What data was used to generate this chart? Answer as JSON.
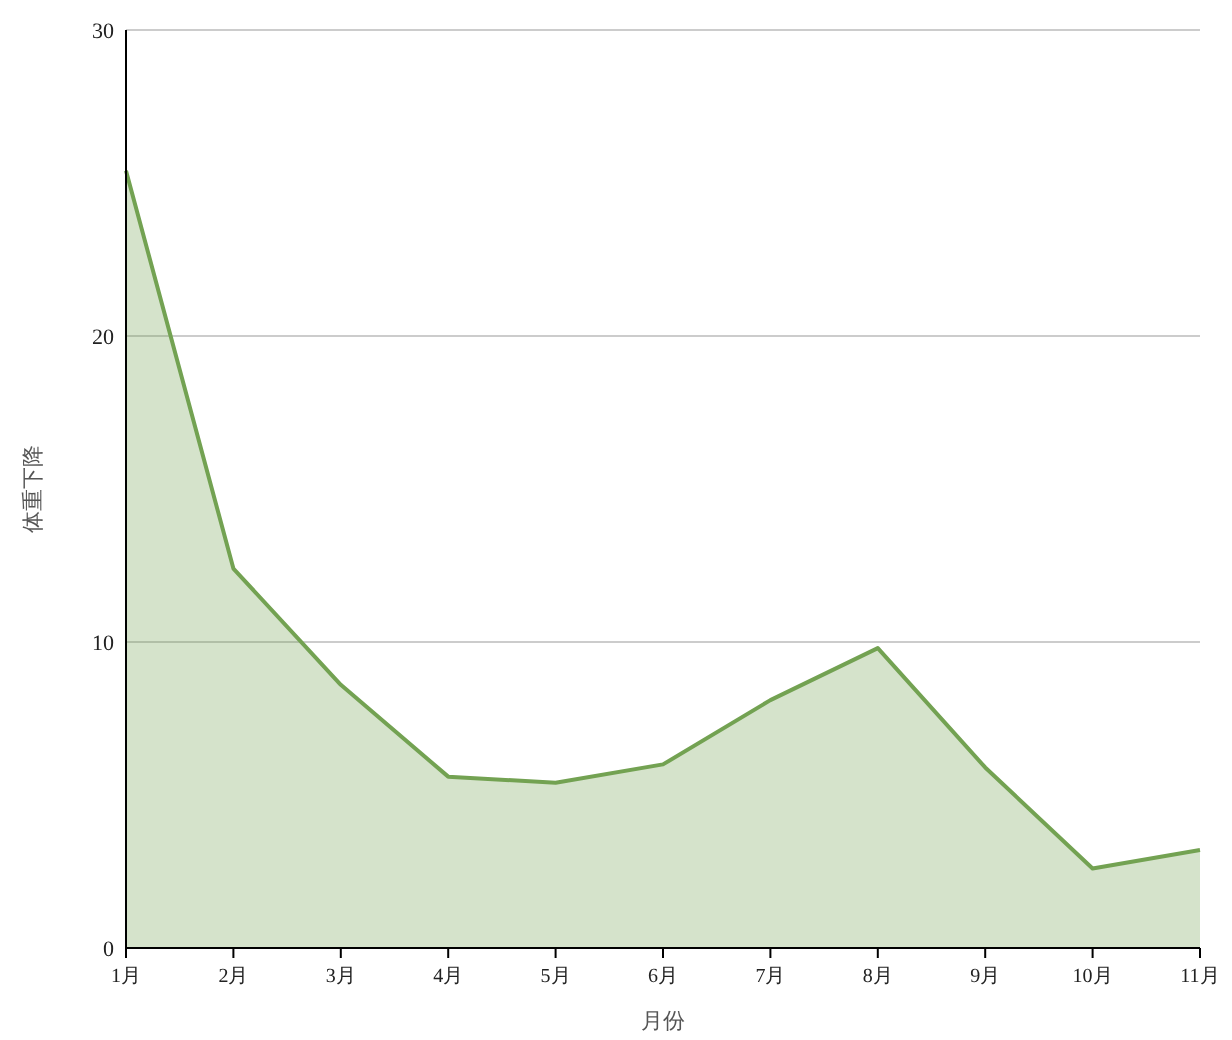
{
  "chart_data": {
    "type": "area",
    "xlabel": "月份",
    "ylabel": "体重下降",
    "categories": [
      "1月",
      "2月",
      "3月",
      "4月",
      "5月",
      "6月",
      "7月",
      "8月",
      "9月",
      "10月",
      "11月"
    ],
    "series": [
      {
        "color": "#73a252",
        "values": [
          25.4,
          12.4,
          8.6,
          5.6,
          5.4,
          6.0,
          8.1,
          9.8,
          5.9,
          2.6,
          3.2
        ]
      }
    ],
    "ylim": [
      0,
      30
    ],
    "yticks": [
      0,
      10,
      20,
      30
    ],
    "grid": "y"
  }
}
